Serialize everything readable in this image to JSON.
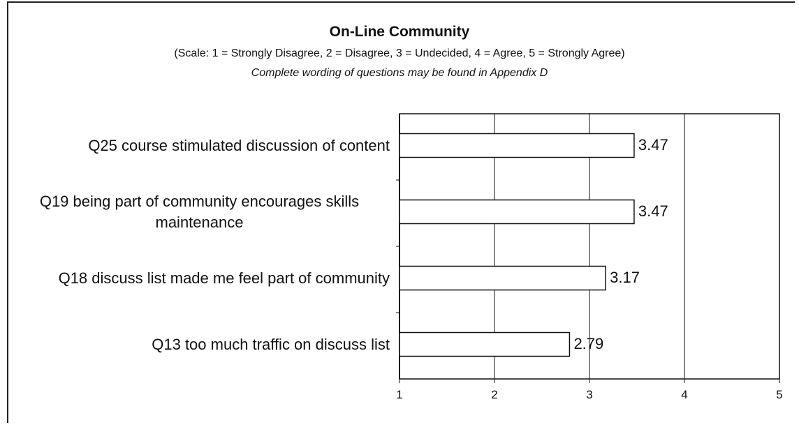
{
  "chart_data": {
    "type": "barh",
    "title": "On-Line Community",
    "subtitle": "(Scale: 1 = Strongly Disagree, 2 = Disagree, 3 = Undecided, 4 = Agree, 5 = Strongly Agree)",
    "note": "Complete wording of questions may be found in Appendix D",
    "categories": [
      "Q25 course stimulated discussion of content",
      "Q19 being part of community encourages skills maintenance",
      "Q18 discuss list made me feel part of community",
      "Q13 too much traffic on discuss list"
    ],
    "values": [
      3.47,
      3.47,
      3.17,
      2.79
    ],
    "color": "#ffffff",
    "xlim": [
      1,
      5
    ],
    "xticks": [
      1,
      2,
      3,
      4,
      5
    ],
    "grid": true
  }
}
